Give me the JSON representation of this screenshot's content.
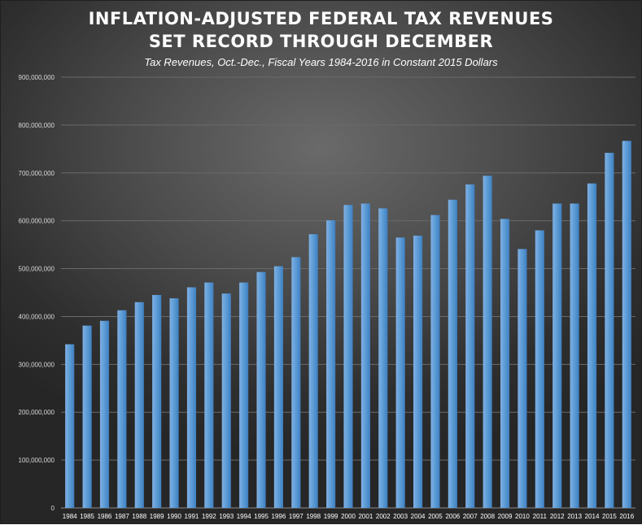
{
  "chart_data": {
    "type": "bar",
    "title_lines": [
      "INFLATION-ADJUSTED FEDERAL TAX REVENUES",
      "SET RECORD THROUGH DECEMBER"
    ],
    "subtitle": "Tax Revenues, Oct.-Dec., Fiscal Years 1984-2016 in Constant 2015 Dollars",
    "xlabel": "",
    "ylabel": "",
    "ylim": [
      0,
      900000000
    ],
    "yticks": [
      0,
      100000000,
      200000000,
      300000000,
      400000000,
      500000000,
      600000000,
      700000000,
      800000000,
      900000000
    ],
    "ytick_labels": [
      "0",
      "100,000,000",
      "200,000,000",
      "300,000,000",
      "400,000,000",
      "500,000,000",
      "600,000,000",
      "700,000,000",
      "800,000,000",
      "900,000,000"
    ],
    "grid": true,
    "legend": "none",
    "bar_color": "#5b9bd5",
    "categories": [
      "1984",
      "1985",
      "1986",
      "1987",
      "1988",
      "1989",
      "1990",
      "1991",
      "1992",
      "1993",
      "1994",
      "1995",
      "1996",
      "1997",
      "1998",
      "1999",
      "2000",
      "2001",
      "2002",
      "2003",
      "2004",
      "2005",
      "2006",
      "2007",
      "2008",
      "2009",
      "2010",
      "2011",
      "2012",
      "2013",
      "2014",
      "2015",
      "2016"
    ],
    "values": [
      342000000,
      381000000,
      391000000,
      413000000,
      430000000,
      445000000,
      438000000,
      461000000,
      471000000,
      448000000,
      471000000,
      493000000,
      505000000,
      524000000,
      572000000,
      601000000,
      633000000,
      636000000,
      626000000,
      565000000,
      569000000,
      612000000,
      644000000,
      676000000,
      694000000,
      604000000,
      541000000,
      580000000,
      636000000,
      636000000,
      678000000,
      742000000,
      767000000
    ]
  }
}
